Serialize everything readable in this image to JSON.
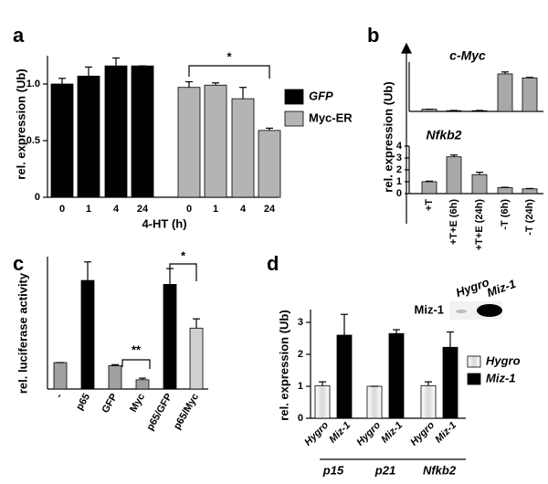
{
  "chart_data": [
    {
      "type": "bar",
      "panel": "a",
      "y_label": "rel. expression (Ub)",
      "x_label": "4-HT (h)",
      "categories": [
        "0",
        "1",
        "4",
        "24",
        "0",
        "1",
        "4",
        "24"
      ],
      "series": [
        {
          "name": "GFP",
          "color": "#000000",
          "values": [
            1.0,
            1.07,
            1.16,
            1.16,
            null,
            null,
            null,
            null
          ],
          "errors": [
            0.05,
            0.08,
            0.07,
            0,
            null,
            null,
            null,
            null
          ]
        },
        {
          "name": "Myc-ER",
          "color": "#b4b4b4",
          "values": [
            null,
            null,
            null,
            null,
            0.97,
            0.99,
            0.87,
            0.59
          ],
          "errors": [
            null,
            null,
            null,
            null,
            0.05,
            0.02,
            0.1,
            0.02
          ]
        }
      ],
      "ylim": [
        0,
        1.25
      ],
      "yticks": [
        0,
        0.5,
        {
          "value": 1,
          "label": "1.0"
        }
      ],
      "annotations": [
        "*"
      ]
    },
    {
      "type": "bar",
      "panel": "b",
      "title": "c-Myc",
      "y_label": "rel. expression (Ub)",
      "values": [
        0.9,
        0.3,
        0.3,
        15.2,
        13.6
      ],
      "errors": [
        0,
        0.1,
        0.1,
        0.8,
        0.2
      ],
      "color": "#a8a8a8",
      "ylim": [
        0,
        20
      ]
    },
    {
      "type": "bar",
      "title": "Nfkb2",
      "categories": [
        "+T",
        "+T+E (6h)",
        "+T+E (24h)",
        "-T (6h)",
        "-T (24h)"
      ],
      "values": [
        1.0,
        3.1,
        1.6,
        0.5,
        0.4
      ],
      "errors": [
        0.05,
        0.15,
        0.2,
        0.03,
        0.03
      ],
      "color": "#a8a8a8",
      "ylim": [
        0,
        4
      ],
      "yticks": [
        0,
        1,
        2,
        3,
        4
      ]
    },
    {
      "type": "bar",
      "panel": "c",
      "y_label": "rel. luciferase activity",
      "categories": [
        "-",
        "p65",
        "GFP",
        "Myc",
        "p65/GFP",
        "p65/Myc"
      ],
      "values": [
        1.0,
        4.1,
        0.88,
        0.35,
        3.95,
        2.3
      ],
      "errors": [
        0,
        0.7,
        0.04,
        0.06,
        0.6,
        0.35
      ],
      "colors": [
        "#a0a0a0",
        "#000000",
        "#a0a0a0",
        "#a0a0a0",
        "#000000",
        "#d0d0d0"
      ],
      "ylim": [
        0,
        5
      ],
      "annotations": [
        "**",
        "*"
      ]
    },
    {
      "type": "bar",
      "panel": "d",
      "y_label": "rel. expression (Ub)",
      "categories": [
        "p15",
        "p21",
        "Nfkb2"
      ],
      "series": [
        {
          "name": "Hygro",
          "color": "#f0f0f0",
          "values": [
            1.02,
            1.0,
            1.02
          ],
          "errors": [
            0.12,
            0,
            0.12
          ]
        },
        {
          "name": "Miz-1",
          "color": "#000000",
          "values": [
            2.6,
            2.65,
            2.22
          ],
          "errors": [
            0.65,
            0.12,
            0.48
          ]
        }
      ],
      "ylim": [
        0,
        3.4
      ],
      "yticks": [
        0,
        1,
        2,
        3
      ],
      "inset": {
        "columns": [
          "Hygro",
          "Miz-1"
        ],
        "row": "Miz-1"
      }
    }
  ]
}
